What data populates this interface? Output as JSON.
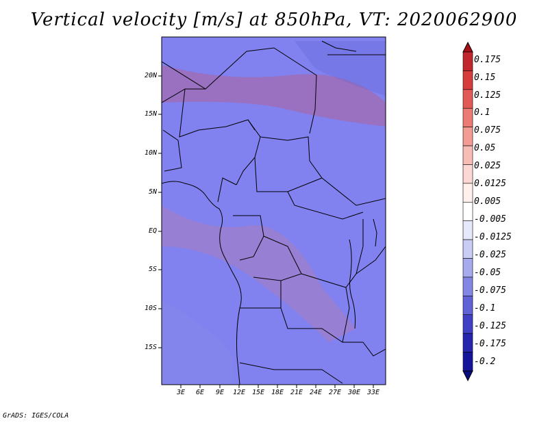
{
  "title": "Vertical velocity [m/s] at 850hPa, VT: 2020062900",
  "footer": "GrADS: IGES/COLA",
  "map": {
    "type": "filled-contour-map",
    "lon_range": [
      0,
      34.5
    ],
    "lat_range": [
      -20,
      25
    ],
    "lat_labels": [
      "20N",
      "15N",
      "10N",
      "5N",
      "EQ",
      "5S",
      "10S",
      "15S"
    ],
    "lon_labels": [
      "3E",
      "6E",
      "9E",
      "12E",
      "15E",
      "18E",
      "21E",
      "24E",
      "27E",
      "30E",
      "33E"
    ]
  },
  "colorbar": {
    "levels": [
      "0.175",
      "0.15",
      "0.125",
      "0.1",
      "0.075",
      "0.05",
      "0.025",
      "0.0125",
      "0.005",
      "-0.005",
      "-0.0125",
      "-0.025",
      "-0.05",
      "-0.075",
      "-0.1",
      "-0.125",
      "-0.175",
      "-0.2"
    ],
    "colors": [
      "#a50f15",
      "#c0262b",
      "#d63c3c",
      "#e25a55",
      "#ec7b74",
      "#f29c94",
      "#f7bcb5",
      "#fbd8d3",
      "#fff0ee",
      "#ffffff",
      "#e6e8fb",
      "#c9ccf5",
      "#a8aaee",
      "#8486e3",
      "#6062d6",
      "#3f40c4",
      "#2526ad",
      "#15159a",
      "#0b0b80"
    ]
  }
}
